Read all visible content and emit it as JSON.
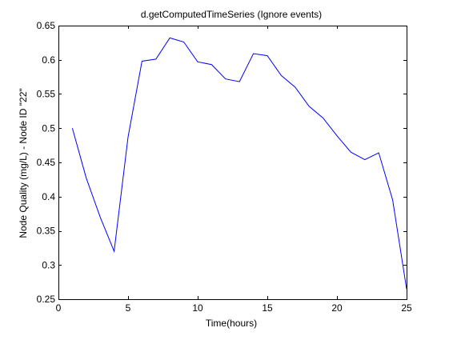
{
  "chart_data": {
    "type": "line",
    "title": "d.getComputedTimeSeries (Ignore events)",
    "xlabel": "Time(hours)",
    "ylabel": "Node Quality (mg/L) - Node ID \"22\"",
    "xlim": [
      0,
      25
    ],
    "ylim": [
      0.25,
      0.65
    ],
    "xticks": [
      0,
      5,
      10,
      15,
      20,
      25
    ],
    "yticks": [
      0.25,
      0.3,
      0.35,
      0.4,
      0.45,
      0.5,
      0.55,
      0.6,
      0.65
    ],
    "xtick_labels": [
      "0",
      "5",
      "10",
      "15",
      "20",
      "25"
    ],
    "ytick_labels": [
      "0.25",
      "0.3",
      "0.35",
      "0.4",
      "0.45",
      "0.5",
      "0.55",
      "0.6",
      "0.65"
    ],
    "grid": false,
    "series": [
      {
        "color": "#0000ff",
        "x": [
          1,
          2,
          3,
          4,
          5,
          6,
          7,
          8,
          9,
          10,
          11,
          12,
          13,
          14,
          15,
          16,
          17,
          18,
          19,
          20,
          21,
          22,
          23,
          24,
          25
        ],
        "values": [
          0.5,
          0.427,
          0.37,
          0.32,
          0.487,
          0.598,
          0.601,
          0.632,
          0.626,
          0.597,
          0.593,
          0.572,
          0.568,
          0.609,
          0.606,
          0.577,
          0.56,
          0.532,
          0.515,
          0.489,
          0.465,
          0.454,
          0.464,
          0.395,
          0.265
        ]
      }
    ]
  }
}
